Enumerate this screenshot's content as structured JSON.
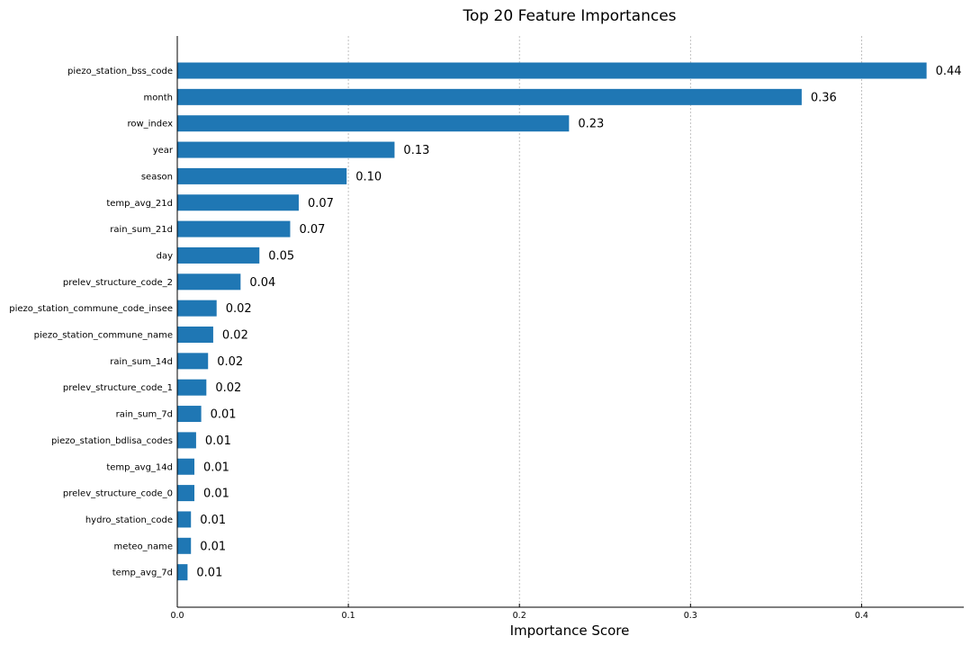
{
  "chart_data": {
    "type": "bar",
    "orientation": "horizontal",
    "title": "Top 20 Feature Importances",
    "xlabel": "Importance Score",
    "ylabel": "",
    "xlim": [
      0,
      0.46
    ],
    "xticks": [
      0,
      0.1,
      0.2,
      0.3,
      0.4
    ],
    "xtick_labels": [
      "0.0",
      "0.1",
      "0.2",
      "0.3",
      "0.4"
    ],
    "grid": "vertical-dashed",
    "bar_color": "#1f77b4",
    "categories": [
      "piezo_station_bss_code",
      "month",
      "row_index",
      "year",
      "season",
      "temp_avg_21d",
      "rain_sum_21d",
      "day",
      "prelev_structure_code_2",
      "piezo_station_commune_code_insee",
      "piezo_station_commune_name",
      "rain_sum_14d",
      "prelev_structure_code_1",
      "rain_sum_7d",
      "piezo_station_bdlisa_codes",
      "temp_avg_14d",
      "prelev_structure_code_0",
      "hydro_station_code",
      "meteo_name",
      "temp_avg_7d"
    ],
    "values": [
      0.438,
      0.365,
      0.229,
      0.127,
      0.099,
      0.071,
      0.066,
      0.048,
      0.037,
      0.023,
      0.021,
      0.018,
      0.017,
      0.014,
      0.011,
      0.01,
      0.01,
      0.008,
      0.008,
      0.006
    ],
    "value_labels": [
      "0.44",
      "0.36",
      "0.23",
      "0.13",
      "0.10",
      "0.07",
      "0.07",
      "0.05",
      "0.04",
      "0.02",
      "0.02",
      "0.02",
      "0.02",
      "0.01",
      "0.01",
      "0.01",
      "0.01",
      "0.01",
      "0.01",
      "0.01"
    ]
  }
}
